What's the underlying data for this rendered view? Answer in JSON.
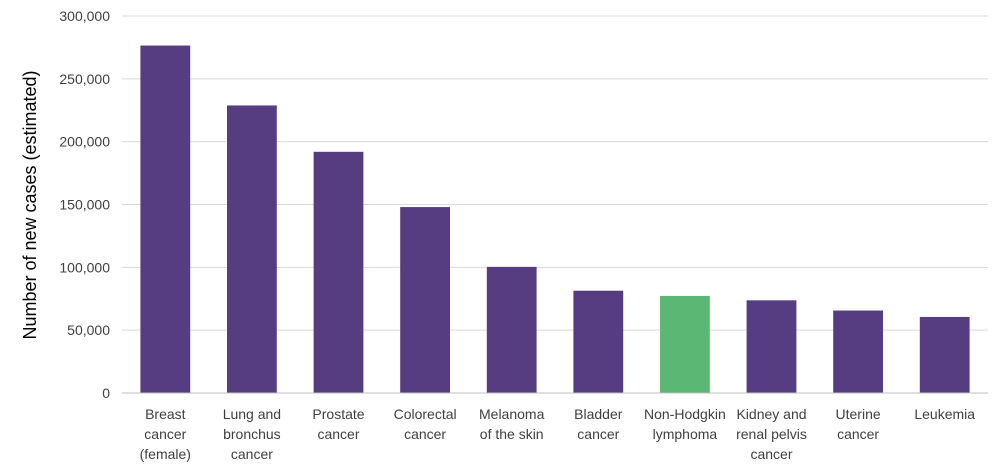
{
  "chart_data": {
    "type": "bar",
    "title": "",
    "xlabel": "",
    "ylabel": "Number of new cases (estimated)",
    "ylim": [
      0,
      300000
    ],
    "yticks": [
      "0",
      "50,000",
      "100,000",
      "150,000",
      "200,000",
      "250,000",
      "300,000"
    ],
    "ytick_values": [
      0,
      50000,
      100000,
      150000,
      200000,
      250000,
      300000
    ],
    "grid": true,
    "legend": "none",
    "categories": [
      [
        "Breast",
        "cancer",
        "(female)"
      ],
      [
        "Lung and",
        "bronchus",
        "cancer"
      ],
      [
        "Prostate",
        "cancer"
      ],
      [
        "Colorectal",
        "cancer"
      ],
      [
        "Melanoma",
        "of the skin"
      ],
      [
        "Bladder",
        "cancer"
      ],
      [
        "Non-Hodgkin",
        "lymphoma"
      ],
      [
        "Kidney and",
        "renal pelvis",
        "cancer"
      ],
      [
        "Uterine",
        "cancer"
      ],
      [
        "Leukemia"
      ]
    ],
    "values": [
      276480,
      228820,
      191930,
      147950,
      100350,
      81400,
      77240,
      73750,
      65620,
      60530
    ],
    "colors": [
      "#563d82",
      "#563d82",
      "#563d82",
      "#563d82",
      "#563d82",
      "#563d82",
      "#5bb774",
      "#563d82",
      "#563d82",
      "#563d82"
    ]
  }
}
